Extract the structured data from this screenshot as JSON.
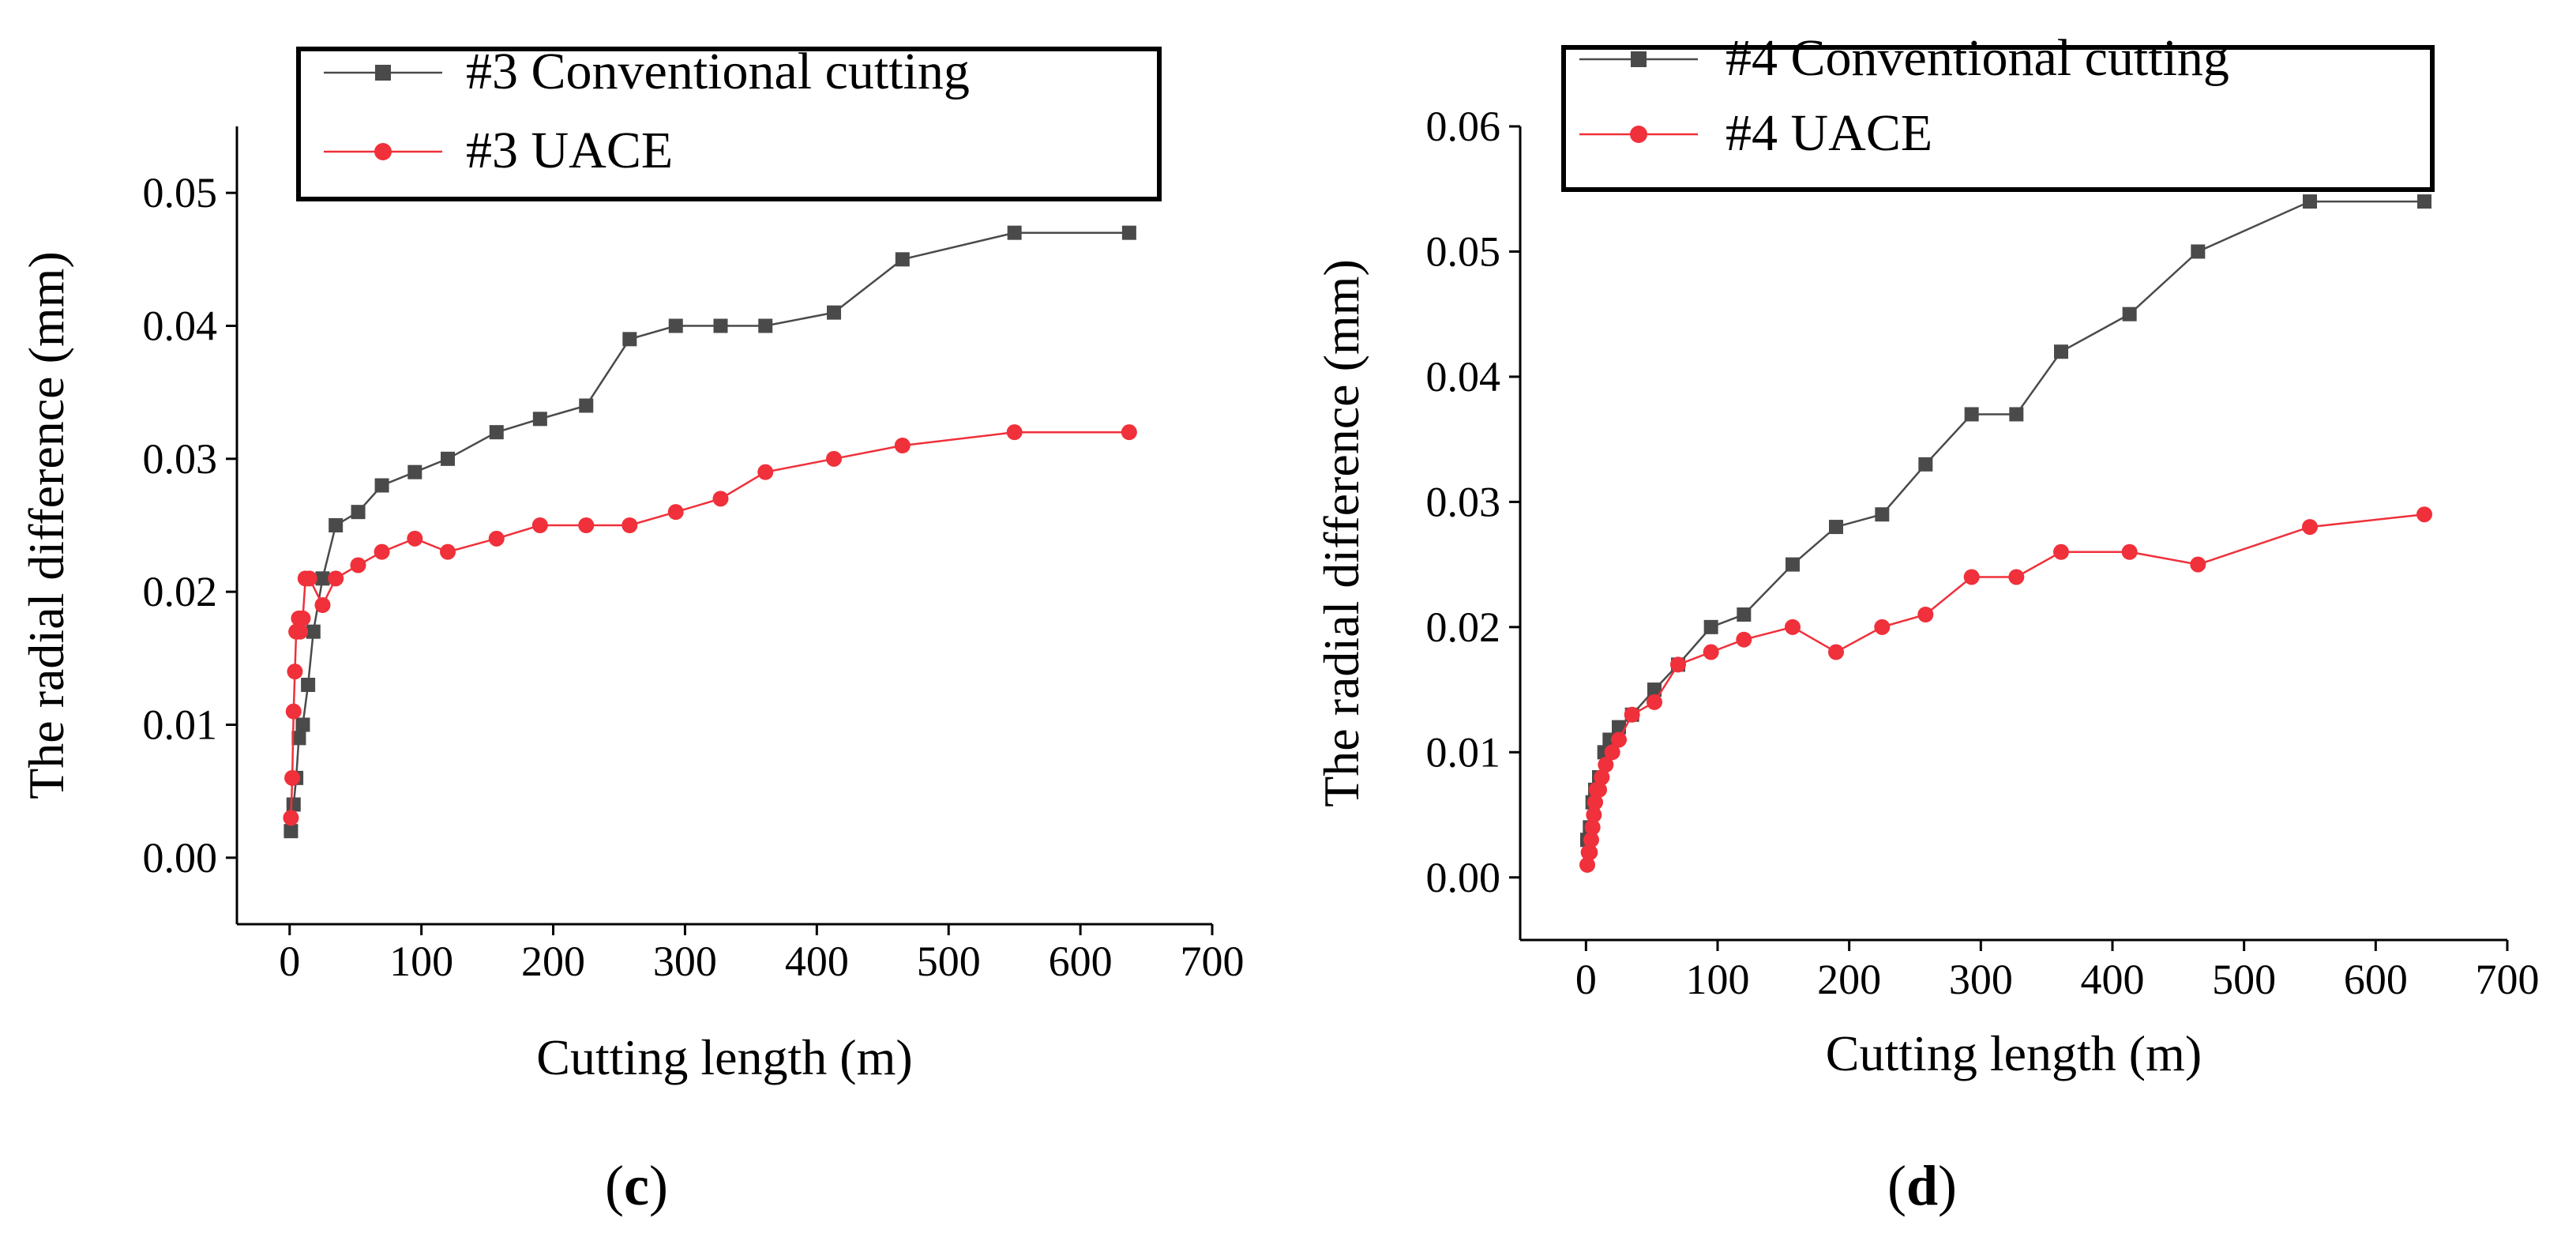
{
  "chart_data": [
    {
      "type": "line",
      "panel": "c",
      "xlabel": "Cutting length (m)",
      "ylabel": "The radial difference (mm)",
      "xlim": [
        -40,
        700
      ],
      "ylim": [
        -0.005,
        0.055
      ],
      "xticks": [
        "0",
        "100",
        "200",
        "300",
        "400",
        "500",
        "600",
        "700"
      ],
      "yticks": [
        "0.00",
        "0.01",
        "0.02",
        "0.03",
        "0.04",
        "0.05"
      ],
      "legend_position": "top",
      "series": [
        {
          "name": "#3 Conventional cutting",
          "color": "#4a4a4a",
          "marker": "square",
          "x": [
            1,
            3,
            5,
            7,
            10,
            14,
            18,
            25,
            35,
            52,
            70,
            95,
            120,
            157,
            190,
            225,
            258,
            293,
            327,
            361,
            413,
            465,
            550,
            637
          ],
          "y": [
            0.002,
            0.004,
            0.006,
            0.009,
            0.01,
            0.013,
            0.017,
            0.021,
            0.025,
            0.026,
            0.028,
            0.029,
            0.03,
            0.032,
            0.033,
            0.034,
            0.039,
            0.04,
            0.04,
            0.04,
            0.041,
            0.045,
            0.047,
            0.047
          ]
        },
        {
          "name": "#3 UACE",
          "color": "#f0303a",
          "marker": "circle",
          "x": [
            1,
            2,
            3,
            4,
            5,
            6,
            7,
            8,
            10,
            12,
            15,
            25,
            35,
            52,
            70,
            95,
            120,
            157,
            190,
            225,
            258,
            293,
            327,
            361,
            413,
            465,
            550,
            637
          ],
          "y": [
            0.003,
            0.006,
            0.011,
            0.014,
            0.017,
            0.017,
            0.018,
            0.017,
            0.018,
            0.021,
            0.021,
            0.019,
            0.021,
            0.022,
            0.023,
            0.024,
            0.023,
            0.024,
            0.025,
            0.025,
            0.025,
            0.026,
            0.027,
            0.029,
            0.03,
            0.031,
            0.032,
            0.032
          ]
        }
      ]
    },
    {
      "type": "line",
      "panel": "d",
      "xlabel": "Cutting length (m)",
      "ylabel": "The radial difference (mm)",
      "xlim": [
        -50,
        700
      ],
      "ylim": [
        -0.005,
        0.06
      ],
      "xticks": [
        "0",
        "100",
        "200",
        "300",
        "400",
        "500",
        "600",
        "700"
      ],
      "yticks": [
        "0.00",
        "0.01",
        "0.02",
        "0.03",
        "0.04",
        "0.05",
        "0.06"
      ],
      "legend_position": "top",
      "series": [
        {
          "name": "#4 Conventional cutting",
          "color": "#4a4a4a",
          "marker": "square",
          "x": [
            1,
            3,
            5,
            7,
            10,
            14,
            18,
            25,
            35,
            52,
            70,
            95,
            120,
            157,
            190,
            225,
            258,
            293,
            327,
            361,
            413,
            465,
            550,
            637
          ],
          "y": [
            0.003,
            0.004,
            0.006,
            0.007,
            0.008,
            0.01,
            0.011,
            0.012,
            0.013,
            0.015,
            0.017,
            0.02,
            0.021,
            0.025,
            0.028,
            0.029,
            0.033,
            0.037,
            0.037,
            0.042,
            0.045,
            0.05,
            0.054,
            0.054
          ]
        },
        {
          "name": "#4 UACE",
          "color": "#f0303a",
          "marker": "circle",
          "x": [
            1,
            2,
            3,
            4,
            5,
            6,
            7,
            8,
            10,
            12,
            15,
            20,
            25,
            35,
            52,
            70,
            95,
            120,
            157,
            190,
            225,
            258,
            293,
            327,
            361,
            413,
            465,
            550,
            637
          ],
          "y": [
            0.001,
            0.002,
            0.002,
            0.003,
            0.004,
            0.005,
            0.006,
            0.007,
            0.007,
            0.008,
            0.009,
            0.01,
            0.011,
            0.013,
            0.014,
            0.017,
            0.018,
            0.019,
            0.02,
            0.018,
            0.02,
            0.021,
            0.024,
            0.024,
            0.026,
            0.026,
            0.025,
            0.028,
            0.029
          ]
        }
      ]
    }
  ],
  "captions": [
    "(c)",
    "(d)"
  ]
}
